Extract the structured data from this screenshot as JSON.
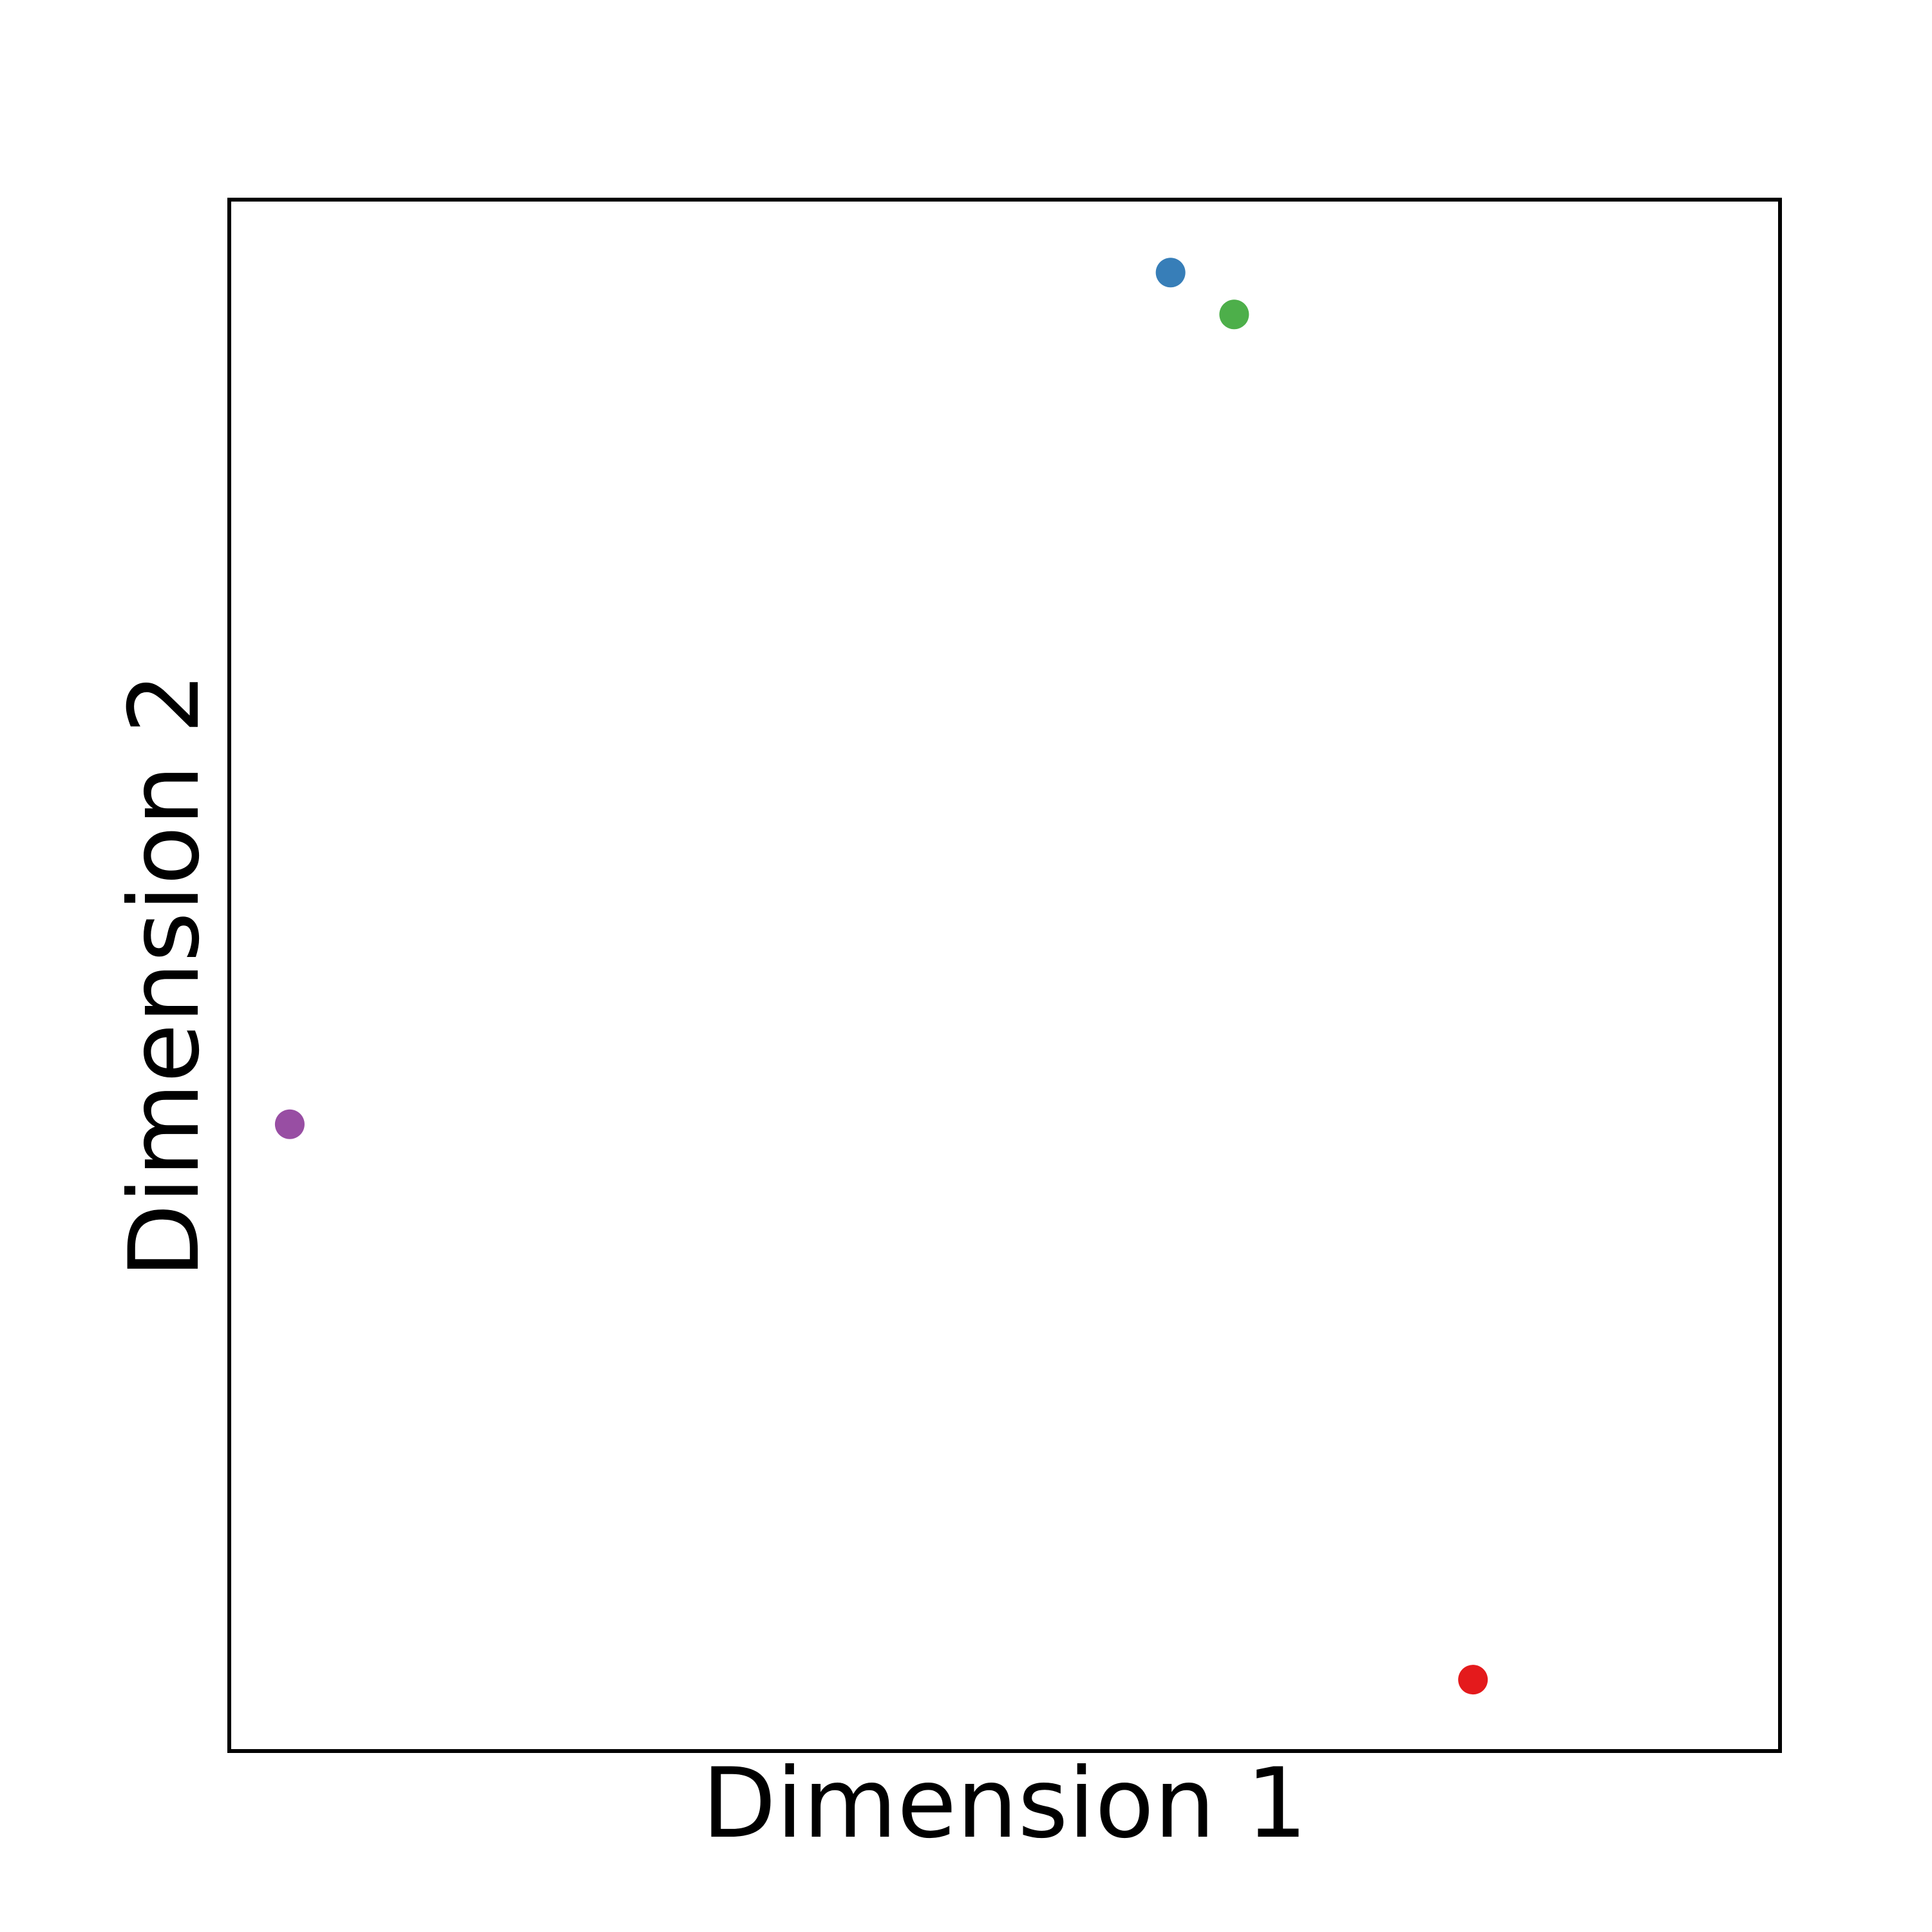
{
  "chart_data": {
    "type": "scatter",
    "title": "",
    "xlabel": "Dimension 1",
    "ylabel": "Dimension 2",
    "xlim": [
      0,
      1
    ],
    "ylim": [
      0,
      1
    ],
    "grid": false,
    "ticks_visible": false,
    "points": [
      {
        "x": 0.607,
        "y": 0.953,
        "color": "#377eb8"
      },
      {
        "x": 0.648,
        "y": 0.926,
        "color": "#4daf4a"
      },
      {
        "x": 0.039,
        "y": 0.404,
        "color": "#984ea3"
      },
      {
        "x": 0.802,
        "y": 0.046,
        "color": "#e41a1c"
      }
    ]
  }
}
